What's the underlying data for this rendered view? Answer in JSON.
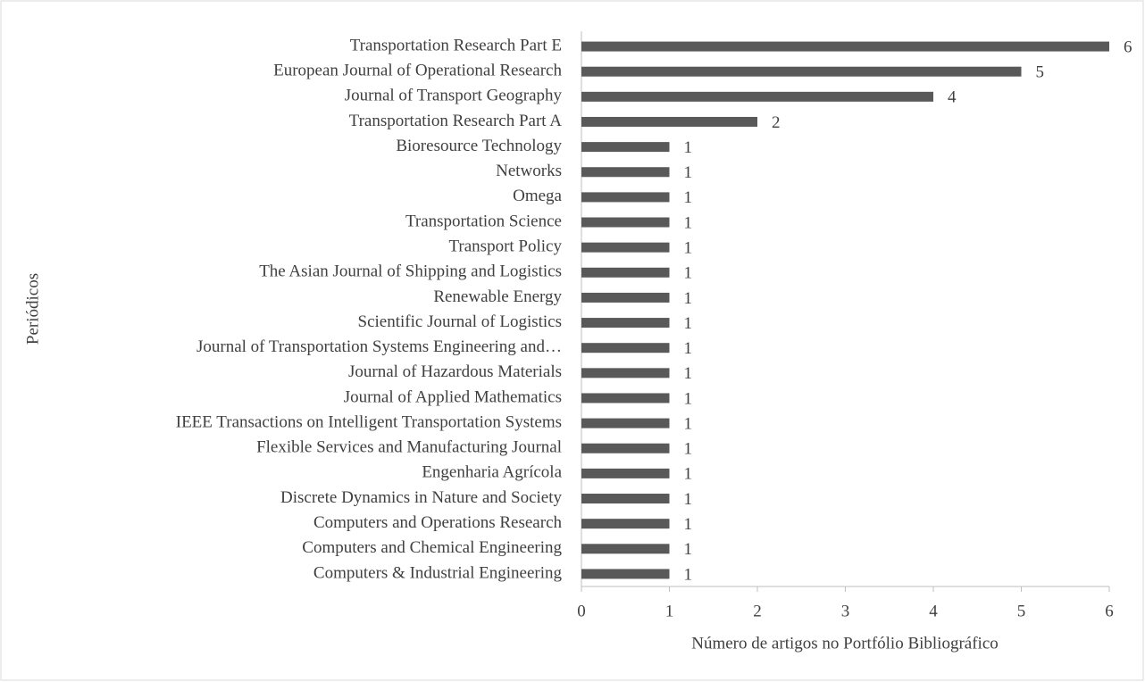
{
  "chart_data": {
    "type": "bar",
    "orientation": "horizontal",
    "x_label": "Número de artigos no Portfólio Bibliográfico",
    "y_label": "Periódicos",
    "categories": [
      "Transportation Research Part E",
      "European Journal of Operational Research",
      "Journal of Transport Geography",
      "Transportation Research Part A",
      "Bioresource Technology",
      "Networks",
      "Omega",
      "Transportation Science",
      "Transport Policy",
      "The Asian Journal of Shipping and Logistics",
      "Renewable Energy",
      "Scientific Journal of Logistics",
      "Journal of Transportation Systems Engineering and…",
      "Journal of Hazardous Materials",
      "Journal of Applied Mathematics",
      "IEEE Transactions on Intelligent Transportation Systems",
      "Flexible Services and Manufacturing Journal",
      "Engenharia Agrícola",
      "Discrete Dynamics in Nature and Society",
      "Computers and Operations Research",
      "Computers and Chemical Engineering",
      "Computers & Industrial Engineering"
    ],
    "values": [
      6,
      5,
      4,
      2,
      1,
      1,
      1,
      1,
      1,
      1,
      1,
      1,
      1,
      1,
      1,
      1,
      1,
      1,
      1,
      1,
      1,
      1
    ],
    "color": "#595959",
    "xlim": [
      0,
      6
    ],
    "xticks": [
      0,
      1,
      2,
      3,
      4,
      5,
      6
    ]
  }
}
